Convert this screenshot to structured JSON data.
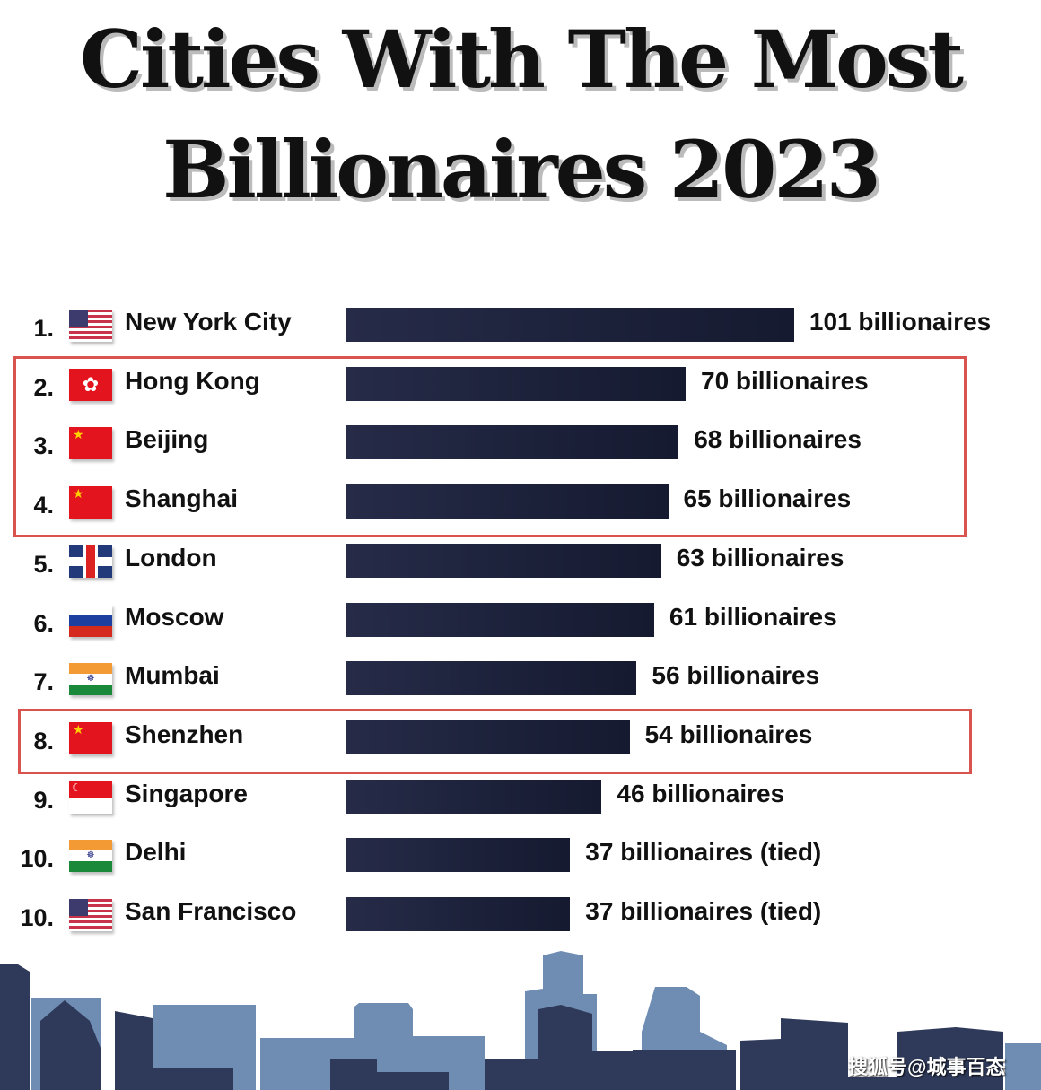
{
  "chart_data": {
    "type": "bar",
    "orientation": "horizontal",
    "title": "Cities With The Most Billionaires 2023",
    "title_lines": [
      "Cities With The Most",
      "Billionaires 2023"
    ],
    "xlabel": "",
    "ylabel": "",
    "grid": false,
    "bar_color": "#1c2138",
    "highlight_color": "#d9534f",
    "rows": [
      {
        "rank": "1.",
        "city": "New York City",
        "flag": "us-flag",
        "value": 101,
        "label": "101 billionaires"
      },
      {
        "rank": "2.",
        "city": "Hong Kong",
        "flag": "hong-kong-flag",
        "value": 70,
        "label": "70 billionaires"
      },
      {
        "rank": "3.",
        "city": "Beijing",
        "flag": "china-flag",
        "value": 68,
        "label": "68 billionaires"
      },
      {
        "rank": "4.",
        "city": "Shanghai",
        "flag": "china-flag",
        "value": 65,
        "label": "65 billionaires"
      },
      {
        "rank": "5.",
        "city": "London",
        "flag": "uk-flag",
        "value": 63,
        "label": "63 billionaires"
      },
      {
        "rank": "6.",
        "city": "Moscow",
        "flag": "russia-flag",
        "value": 61,
        "label": "61 billionaires"
      },
      {
        "rank": "7.",
        "city": "Mumbai",
        "flag": "india-flag",
        "value": 56,
        "label": "56 billionaires"
      },
      {
        "rank": "8.",
        "city": "Shenzhen",
        "flag": "china-flag",
        "value": 54,
        "label": "54 billionaires"
      },
      {
        "rank": "9.",
        "city": "Singapore",
        "flag": "singapore-flag",
        "value": 46,
        "label": "46 billionaires"
      },
      {
        "rank": "10.",
        "city": "Delhi",
        "flag": "india-flag",
        "value": 37,
        "label": "37 billionaires (tied)"
      },
      {
        "rank": "10.",
        "city": "San Francisco",
        "flag": "us-flag",
        "value": 37,
        "label": "37 billionaires (tied)"
      }
    ],
    "highlighted_groups": [
      [
        "Hong Kong",
        "Beijing",
        "Shanghai"
      ],
      [
        "Shenzhen"
      ]
    ]
  },
  "watermark": "搜狐号@城事百态"
}
